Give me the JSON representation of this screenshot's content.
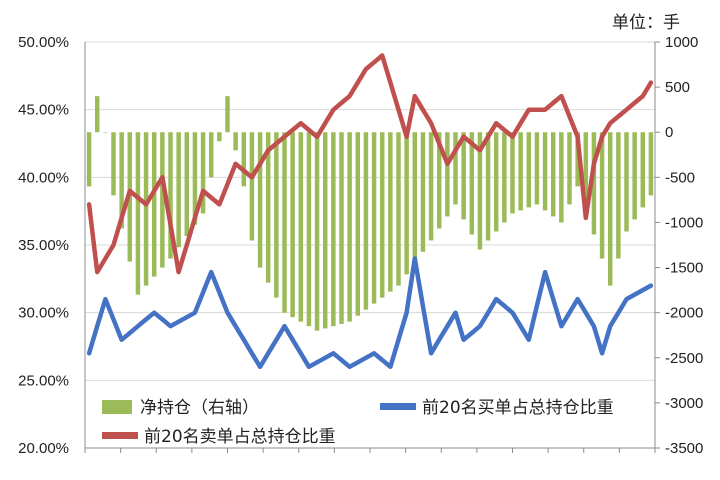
{
  "chart_data": {
    "type": "line",
    "title": "",
    "unit_label": "单位：手",
    "xlabel": "",
    "x_tick_labels": [],
    "grid": true,
    "legend_position": "bottom-inside",
    "left_axis": {
      "label": "",
      "ylim": [
        0.2,
        0.5
      ],
      "ticks": [
        0.2,
        0.25,
        0.3,
        0.35,
        0.4,
        0.45,
        0.5
      ],
      "tick_labels": [
        "20.00%",
        "25.00%",
        "30.00%",
        "35.00%",
        "40.00%",
        "45.00%",
        "50.00%"
      ]
    },
    "right_axis": {
      "label": "",
      "ylim": [
        -3500,
        1000
      ],
      "ticks": [
        -3500,
        -3000,
        -2500,
        -2000,
        -1500,
        -1000,
        -500,
        0,
        500,
        1000
      ],
      "tick_labels": [
        "-3500",
        "-3000",
        "-2500",
        "-2000",
        "-1500",
        "-1000",
        "-500",
        "0",
        "500",
        "1000"
      ]
    },
    "num_points": 70,
    "series": [
      {
        "name": "净持仓（右轴）",
        "kind": "bar",
        "axis": "right",
        "color": "#9bbb59",
        "knots_index": [
          0,
          1,
          2,
          3,
          6,
          10,
          14,
          16,
          17,
          18,
          19,
          20,
          21,
          24,
          28,
          32,
          38,
          42,
          45,
          48,
          50,
          52,
          55,
          58,
          60,
          63,
          64,
          66,
          69
        ],
        "knots_value": [
          -600,
          400,
          0,
          -700,
          -1800,
          -1400,
          -900,
          -100,
          400,
          -200,
          -600,
          -1200,
          -1500,
          -2000,
          -2200,
          -2100,
          -1700,
          -1200,
          -800,
          -1300,
          -1100,
          -900,
          -800,
          -1000,
          -600,
          -1400,
          -1700,
          -1100,
          -700
        ]
      },
      {
        "name": "前20名买单占总持仓比重",
        "kind": "line",
        "axis": "left",
        "color": "#4472c4",
        "knots_index": [
          0,
          2,
          4,
          6,
          8,
          10,
          13,
          15,
          17,
          18,
          19,
          21,
          24,
          27,
          30,
          32,
          35,
          37,
          38,
          39,
          40,
          42,
          44,
          45,
          46,
          48,
          50,
          52,
          54,
          56,
          58,
          60,
          62,
          63,
          64,
          66,
          69
        ],
        "knots_value": [
          0.27,
          0.31,
          0.28,
          0.29,
          0.3,
          0.29,
          0.3,
          0.33,
          0.3,
          0.29,
          0.28,
          0.26,
          0.29,
          0.26,
          0.27,
          0.26,
          0.27,
          0.26,
          0.28,
          0.3,
          0.34,
          0.27,
          0.29,
          0.3,
          0.28,
          0.29,
          0.31,
          0.3,
          0.28,
          0.33,
          0.29,
          0.31,
          0.29,
          0.27,
          0.29,
          0.31,
          0.32
        ]
      },
      {
        "name": "前20名卖单占总持仓比重",
        "kind": "line",
        "axis": "left",
        "color": "#c0504d",
        "knots_index": [
          0,
          1,
          3,
          5,
          7,
          9,
          11,
          12,
          14,
          16,
          18,
          20,
          22,
          24,
          26,
          28,
          30,
          32,
          34,
          36,
          38,
          39,
          40,
          41,
          42,
          44,
          46,
          48,
          50,
          52,
          54,
          56,
          58,
          60,
          61,
          62,
          63,
          64,
          66,
          68,
          69
        ],
        "knots_value": [
          0.38,
          0.33,
          0.35,
          0.39,
          0.38,
          0.4,
          0.33,
          0.35,
          0.39,
          0.38,
          0.41,
          0.4,
          0.42,
          0.43,
          0.44,
          0.43,
          0.45,
          0.46,
          0.48,
          0.49,
          0.45,
          0.43,
          0.46,
          0.45,
          0.44,
          0.41,
          0.43,
          0.42,
          0.44,
          0.43,
          0.45,
          0.45,
          0.46,
          0.43,
          0.37,
          0.41,
          0.43,
          0.44,
          0.45,
          0.46,
          0.47
        ]
      }
    ]
  }
}
